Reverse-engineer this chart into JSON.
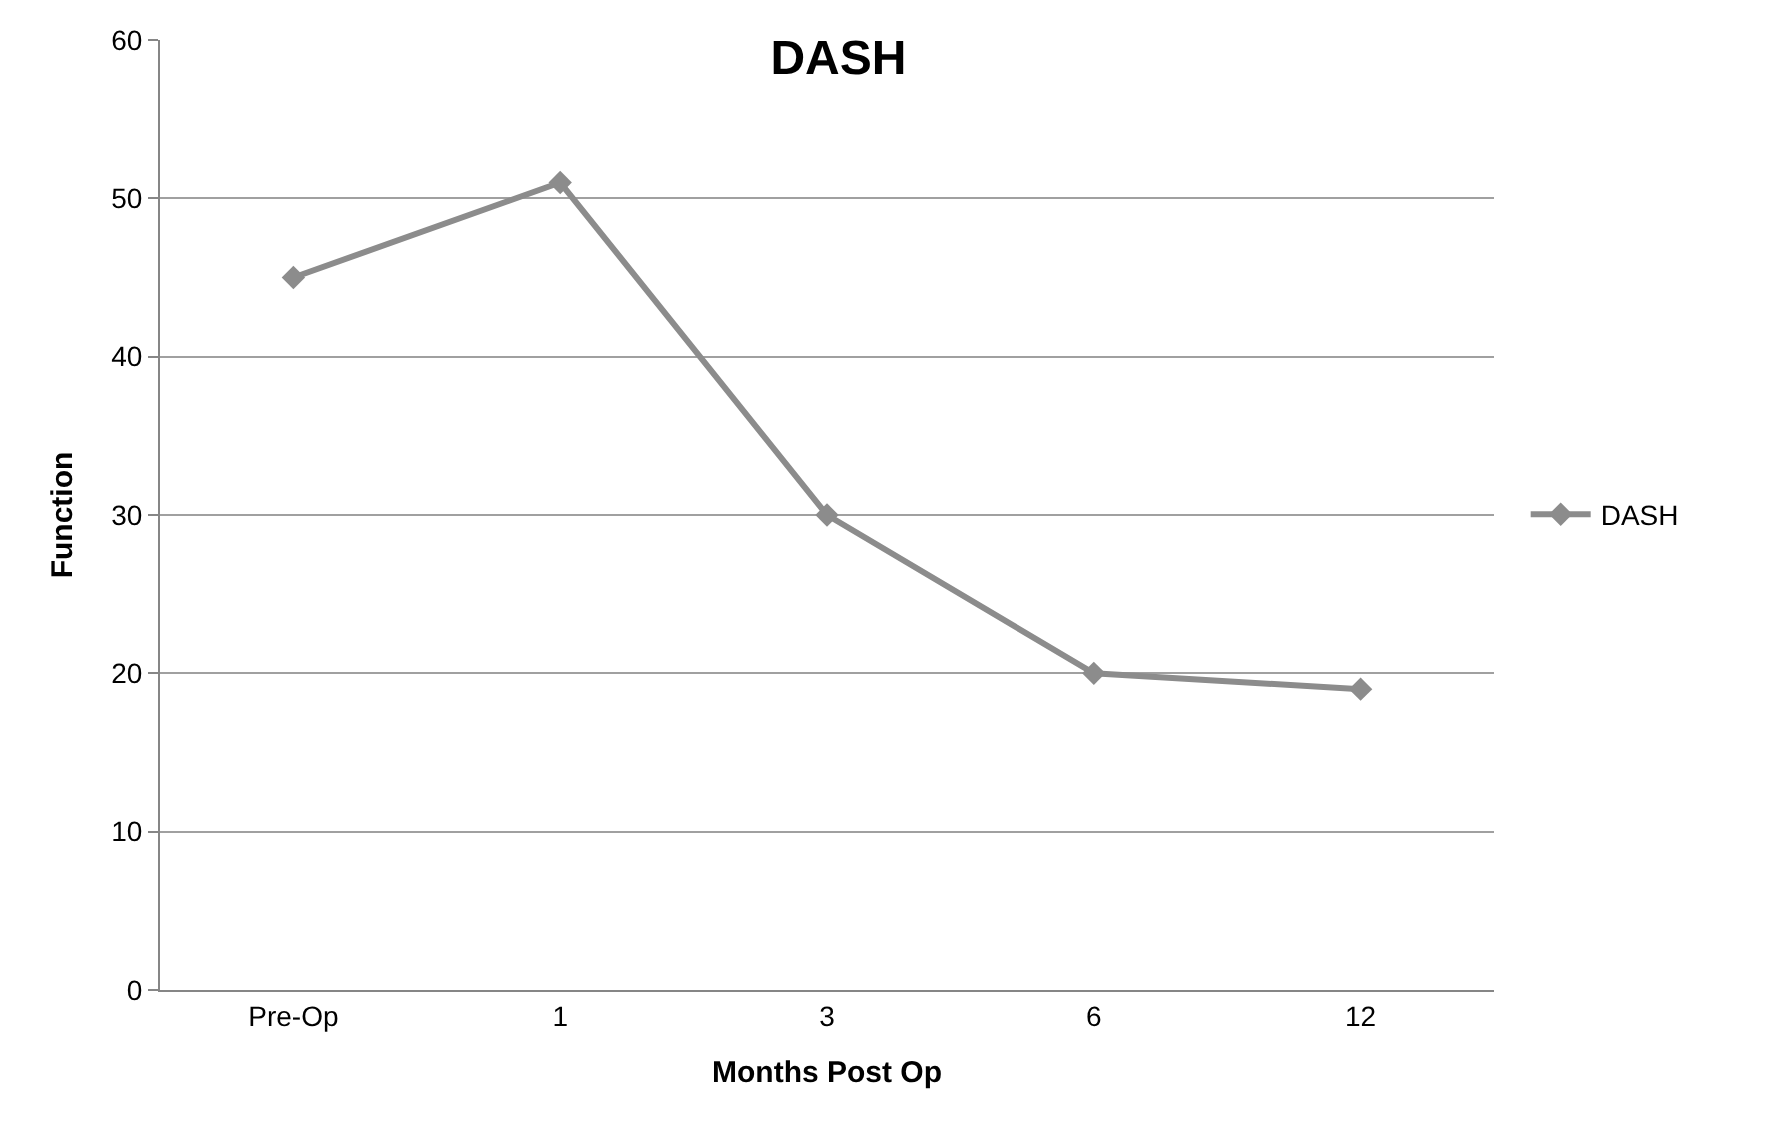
{
  "chart_data": {
    "type": "line",
    "title": "DASH",
    "xlabel": "Months Post Op",
    "ylabel": "Function",
    "categories": [
      "Pre-Op",
      "1",
      "3",
      "6",
      "12"
    ],
    "series": [
      {
        "name": "DASH",
        "color": "#8c8c8c",
        "values": [
          45,
          51,
          30,
          20,
          19
        ]
      }
    ],
    "ylim": [
      0,
      60
    ],
    "yticks": [
      0,
      10,
      20,
      30,
      40,
      50,
      60
    ],
    "grid": "y",
    "legend": "right",
    "marker": "diamond",
    "line_style": "solid"
  }
}
